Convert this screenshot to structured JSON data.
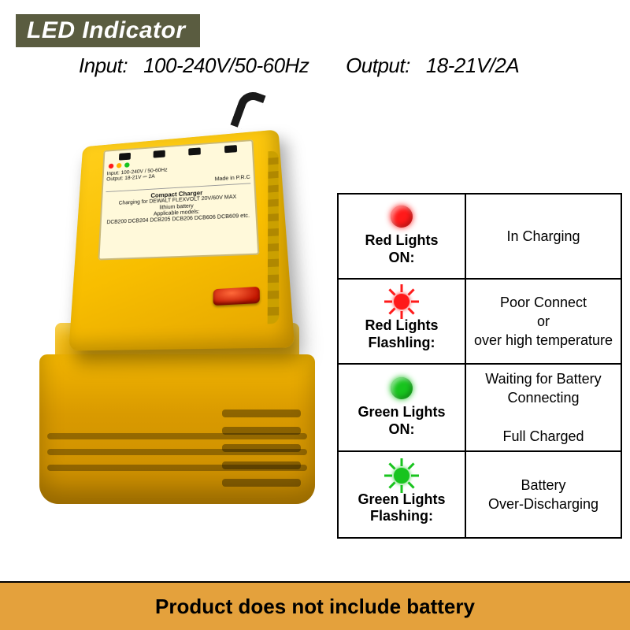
{
  "header": {
    "badge": "LED Indicator",
    "input_label": "Input:",
    "input_value": "100-240V/50-60Hz",
    "output_label": "Output:",
    "output_value": "18-21V/2A"
  },
  "colors": {
    "badge_bg": "#5a5c40",
    "charger_yellow": "#f8be00",
    "battery_yellow": "#e3a400",
    "led_red": "#ff1a1a",
    "led_green": "#18c41e",
    "footer_bg": "#e4a13c",
    "border": "#000000"
  },
  "charger_label": {
    "input_line": "Input: 100-240V / 50-60Hz",
    "output_line": "Output: 18-21V ⎓ 2A",
    "made": "Made in P.R.C",
    "title": "Compact Charger",
    "desc1": "Charging for DEWALT FLEXVOLT 20V/60V MAX",
    "desc2": "lithium battery",
    "desc3": "Applicable models:",
    "desc4": "DCB200 DCB204 DCB205 DCB206 DCB606 DCB609 etc.",
    "dot_colors": [
      "#ff1a1a",
      "#ffb400",
      "#18c41e"
    ]
  },
  "status": [
    {
      "mode": "solid",
      "color": "#ff1a1a",
      "label_l1": "Red Lights",
      "label_l2": "ON:",
      "meaning": "In Charging"
    },
    {
      "mode": "flash",
      "color": "#ff1a1a",
      "label_l1": "Red Lights",
      "label_l2": "Flashling:",
      "meaning": "Poor Connect\nor\nover high temperature"
    },
    {
      "mode": "solid",
      "color": "#18c41e",
      "label_l1": "Green Lights",
      "label_l2": "ON:",
      "meaning": "Waiting for Battery Connecting\n\nFull Charged"
    },
    {
      "mode": "flash",
      "color": "#18c41e",
      "label_l1": "Green Lights",
      "label_l2": "Flashing:",
      "meaning": "Battery\nOver-Discharging"
    }
  ],
  "footer": "Product does not include battery"
}
